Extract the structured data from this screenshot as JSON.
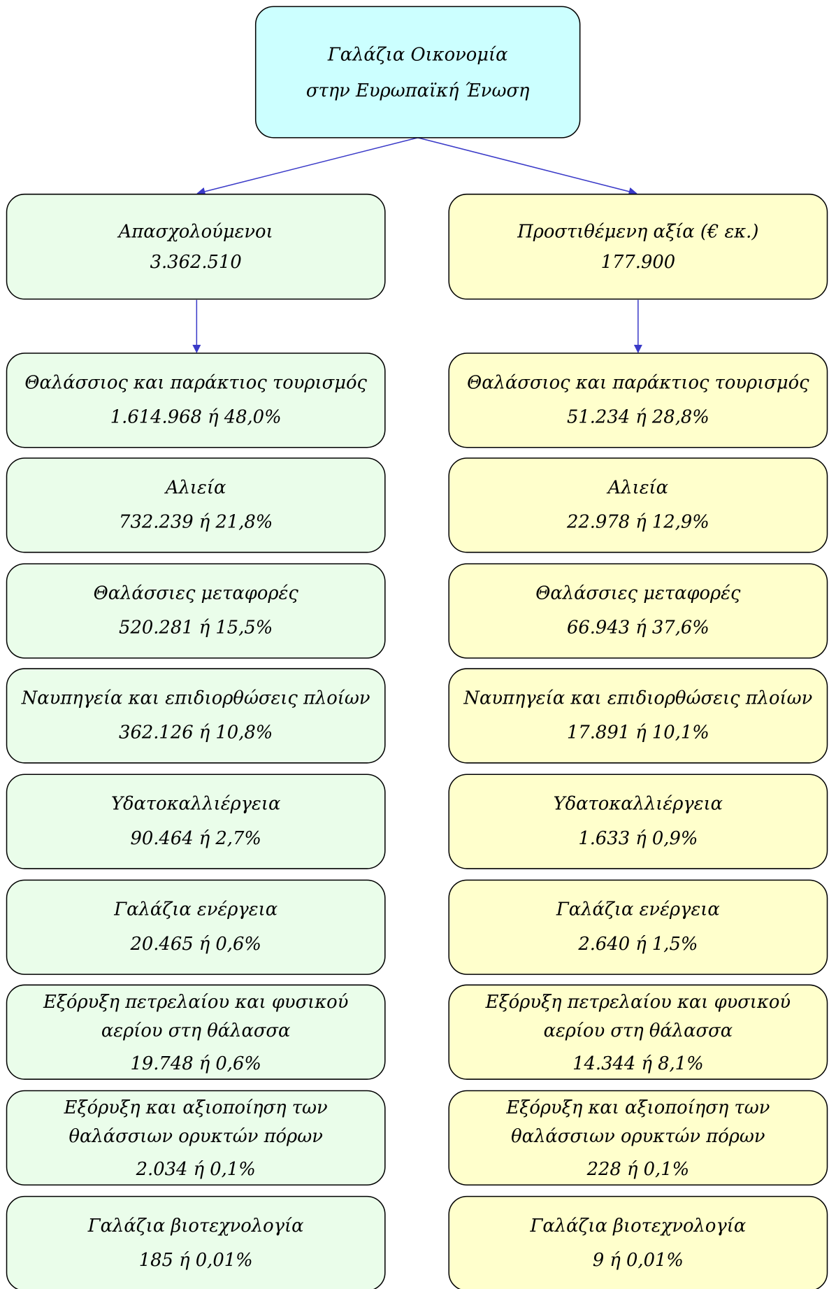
{
  "root": {
    "lines": [
      "Γαλάζια Οικονομία",
      "στην Ευρωπαϊκή Ένωση"
    ]
  },
  "columns": [
    {
      "header": {
        "title": "Απασχολούμενοι",
        "value": "3.362.510"
      },
      "items": [
        {
          "lines": [
            "Θαλάσσιος και παράκτιος τουρισμός"
          ],
          "value": "1.614.968 ή 48,0%"
        },
        {
          "lines": [
            "Αλιεία"
          ],
          "value": "732.239 ή 21,8%"
        },
        {
          "lines": [
            "Θαλάσσιες μεταφορές"
          ],
          "value": "520.281 ή 15,5%"
        },
        {
          "lines": [
            "Ναυπηγεία και επιδιορθώσεις πλοίων"
          ],
          "value": "362.126 ή 10,8%"
        },
        {
          "lines": [
            "Υδατοκαλλιέργεια"
          ],
          "value": "90.464 ή 2,7%"
        },
        {
          "lines": [
            "Γαλάζια ενέργεια"
          ],
          "value": "20.465 ή 0,6%"
        },
        {
          "lines": [
            "Εξόρυξη πετρελαίου και φυσικού",
            "αερίου στη θάλασσα"
          ],
          "value": "19.748 ή 0,6%"
        },
        {
          "lines": [
            "Εξόρυξη και αξιοποίηση των",
            "θαλάσσιων ορυκτών πόρων"
          ],
          "value": "2.034 ή 0,1%"
        },
        {
          "lines": [
            "Γαλάζια βιοτεχνολογία"
          ],
          "value": "185 ή 0,01%"
        }
      ]
    },
    {
      "header": {
        "title": "Προστιθέμενη αξία (€ εκ.)",
        "value": "177.900"
      },
      "items": [
        {
          "lines": [
            "Θαλάσσιος και παράκτιος τουρισμός"
          ],
          "value": "51.234 ή 28,8%"
        },
        {
          "lines": [
            "Αλιεία"
          ],
          "value": "22.978 ή 12,9%"
        },
        {
          "lines": [
            "Θαλάσσιες μεταφορές"
          ],
          "value": "66.943 ή 37,6%"
        },
        {
          "lines": [
            "Ναυπηγεία και επιδιορθώσεις πλοίων"
          ],
          "value": "17.891 ή 10,1%"
        },
        {
          "lines": [
            "Υδατοκαλλιέργεια"
          ],
          "value": "1.633 ή 0,9%"
        },
        {
          "lines": [
            "Γαλάζια ενέργεια"
          ],
          "value": "2.640 ή 1,5%"
        },
        {
          "lines": [
            "Εξόρυξη πετρελαίου και φυσικού",
            "αερίου στη θάλασσα"
          ],
          "value": "14.344 ή 8,1%"
        },
        {
          "lines": [
            "Εξόρυξη και αξιοποίηση των",
            "θαλάσσιων ορυκτών πόρων"
          ],
          "value": "228 ή 0,1%"
        },
        {
          "lines": [
            "Γαλάζια βιοτεχνολογία"
          ],
          "value": "9 ή 0,01%"
        }
      ]
    }
  ]
}
